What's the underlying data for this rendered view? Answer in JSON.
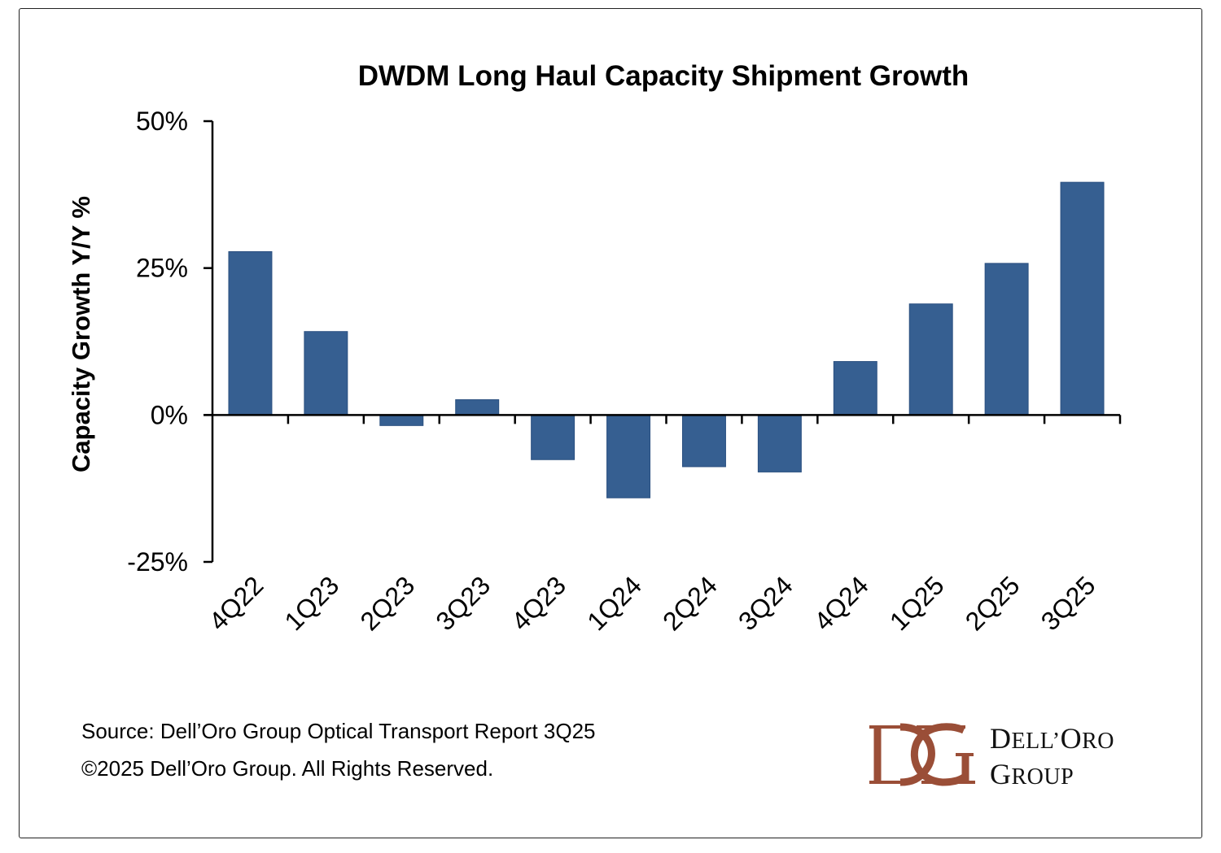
{
  "chart_data": {
    "type": "bar",
    "title": "DWDM Long Haul Capacity Shipment Growth",
    "xlabel": "",
    "ylabel": "Capacity Growth Y/Y %",
    "ylim": [
      -25,
      50
    ],
    "yticks": [
      50,
      25,
      0,
      -25
    ],
    "ytick_labels": [
      "50%",
      "25%",
      "0%",
      "-25%"
    ],
    "categories": [
      "4Q22",
      "1Q23",
      "2Q23",
      "3Q23",
      "4Q23",
      "1Q24",
      "2Q24",
      "3Q24",
      "4Q24",
      "1Q25",
      "2Q25",
      "3Q25"
    ],
    "values": [
      27.8,
      14.2,
      -1.8,
      2.6,
      -7.6,
      -14.1,
      -8.8,
      -9.7,
      9.1,
      18.9,
      25.8,
      39.6
    ],
    "grid": false,
    "legend": "none",
    "bar_color": "#365f91"
  },
  "footer": {
    "source": "Source: Dell’Oro Group Optical Transport Report 3Q25",
    "copyright": "©2025 Dell’Oro Group. All Rights Reserved."
  },
  "logo": {
    "line1_cap": "D",
    "line1_rest": "ELL’",
    "line1_cap2": "O",
    "line1_rest2": "RO",
    "line2_cap": "G",
    "line2_rest": "ROUP",
    "color": "#9a4e37"
  }
}
